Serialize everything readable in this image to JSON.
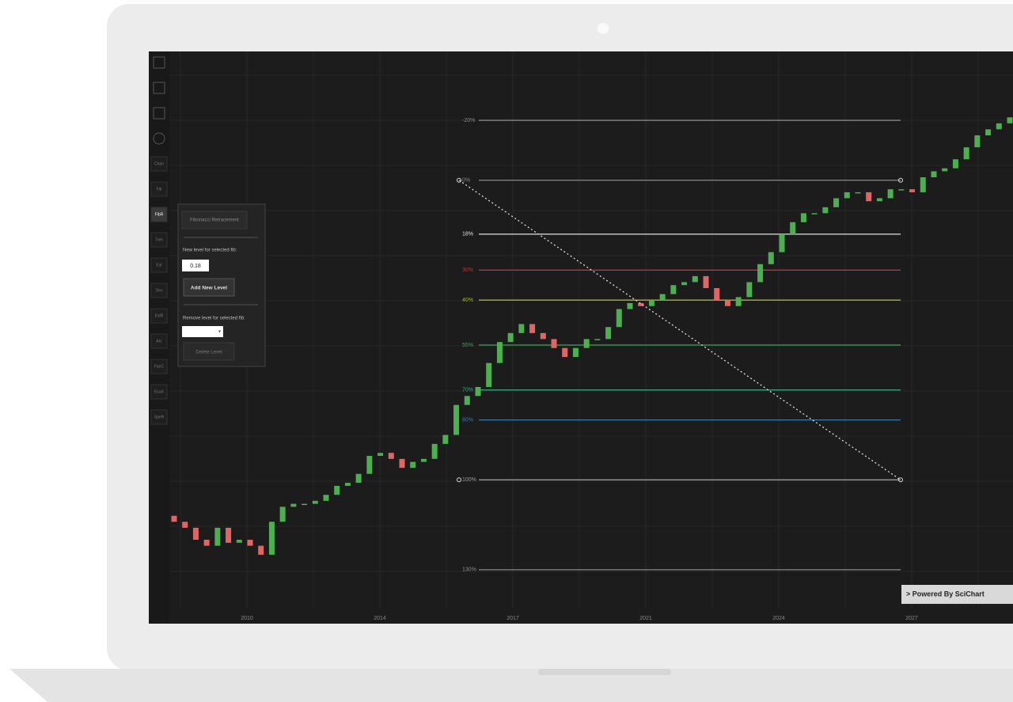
{
  "toolbar": {
    "items": [
      "Chan",
      "Fib",
      "FibR",
      "Tren",
      "Ext",
      "Dev",
      "ExtR",
      "Arc",
      "FanC",
      "Ecart",
      "SpeR"
    ]
  },
  "panel": {
    "title": "Fibonacci Retracement",
    "new_level_label": "New level for selected fib:",
    "new_level_value": "0.18",
    "add_button": "Add New Level",
    "remove_label": "Remove level for selected fib:",
    "delete_button": "Delete Level"
  },
  "watermark": "> Powered By SciChart",
  "chart_data": {
    "type": "candlestick",
    "ylim": [
      148,
      -43
    ],
    "up_color": "#4caf50",
    "down_color": "#e06666",
    "grid": true,
    "x_axis_labels": [
      "2010",
      "2014",
      "2017",
      "2021",
      "2024",
      "2027"
    ],
    "fib_levels": [
      {
        "value": -20,
        "label": "-20%",
        "color": "#8a8a8a"
      },
      {
        "value": 0,
        "label": "0%",
        "color": "#8a8a8a"
      },
      {
        "value": 18,
        "label": "18%",
        "color": "#e0e0e0"
      },
      {
        "value": 30,
        "label": "30%",
        "color": "#b03a3a"
      },
      {
        "value": 40,
        "label": "40%",
        "color": "#a8b040"
      },
      {
        "value": 55,
        "label": "55%",
        "color": "#3fa052"
      },
      {
        "value": 70,
        "label": "70%",
        "color": "#2fae88"
      },
      {
        "value": 80,
        "label": "80%",
        "color": "#3a7aa8"
      },
      {
        "value": 100,
        "label": "100%",
        "color": "#9a9a9a"
      },
      {
        "value": 130,
        "label": "130%",
        "color": "#8a8a8a"
      }
    ],
    "open": [
      112,
      114,
      116,
      120,
      122,
      116,
      121,
      120,
      122,
      125,
      114,
      109,
      108,
      108,
      107,
      105,
      102,
      101,
      98,
      92,
      91,
      93,
      96,
      94,
      93,
      88,
      85,
      75,
      72,
      69,
      61,
      54,
      51,
      48,
      51,
      53,
      56,
      59,
      56,
      53,
      53,
      49,
      43,
      41,
      42,
      40,
      38,
      35,
      34,
      32,
      36,
      40,
      42,
      39,
      34,
      28,
      24,
      18,
      14,
      11,
      11,
      9,
      6,
      4,
      4,
      7,
      6,
      3,
      3,
      4,
      -1,
      -3,
      -4,
      -7,
      -11,
      -15,
      -17,
      -19
    ],
    "close": [
      114,
      116,
      120,
      122,
      116,
      121,
      120,
      122,
      125,
      114,
      109,
      108,
      108,
      107,
      105,
      102,
      101,
      98,
      92,
      91,
      93,
      96,
      94,
      93,
      88,
      85,
      75,
      72,
      69,
      61,
      54,
      51,
      48,
      51,
      53,
      56,
      59,
      56,
      53,
      53,
      49,
      43,
      41,
      42,
      40,
      38,
      35,
      34,
      32,
      36,
      40,
      42,
      39,
      34,
      28,
      24,
      18,
      14,
      11,
      11,
      9,
      6,
      4,
      4,
      7,
      6,
      3,
      3,
      4,
      -1,
      -3,
      -4,
      -7,
      -11,
      -15,
      -17,
      -19,
      -21
    ]
  }
}
